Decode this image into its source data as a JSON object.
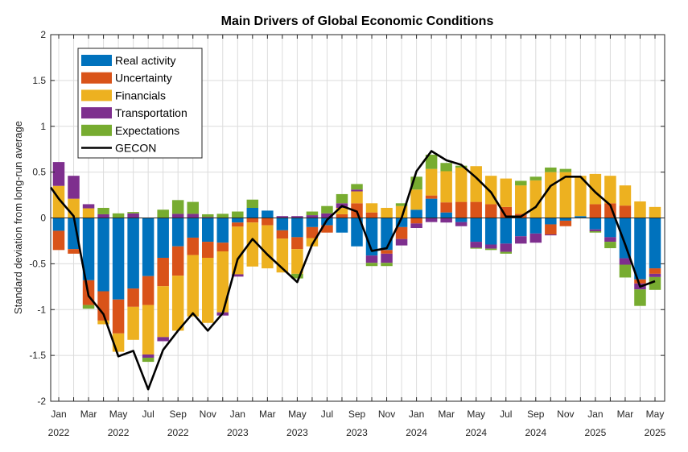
{
  "chart_data": {
    "type": "bar",
    "stacked": true,
    "title": "Main Drivers of Global Economic Conditions",
    "xlabel": "",
    "ylabel": "Standard deviation from long-run average",
    "ylim": [
      -2,
      2
    ],
    "yticks": [
      "2",
      "1.5",
      "1",
      "0.5",
      "0",
      "-0.5",
      "-1",
      "-1.5",
      "-2"
    ],
    "grid": true,
    "legend_position": "top-left",
    "categories": [
      "Jan 2022",
      "Feb 2022",
      "Mar 2022",
      "Apr 2022",
      "May 2022",
      "Jun 2022",
      "Jul 2022",
      "Aug 2022",
      "Sep 2022",
      "Oct 2022",
      "Nov 2022",
      "Dec 2022",
      "Jan 2023",
      "Feb 2023",
      "Mar 2023",
      "Apr 2023",
      "May 2023",
      "Jun 2023",
      "Jul 2023",
      "Aug 2023",
      "Sep 2023",
      "Oct 2023",
      "Nov 2023",
      "Dec 2023",
      "Jan 2024",
      "Feb 2024",
      "Mar 2024",
      "Apr 2024",
      "May 2024",
      "Jun 2024",
      "Jul 2024",
      "Aug 2024",
      "Sep 2024",
      "Oct 2024",
      "Nov 2024",
      "Dec 2024",
      "Jan 2025",
      "Feb 2025",
      "Mar 2025",
      "Apr 2025",
      "May 2025"
    ],
    "xtick_labels": [
      {
        "month": "Jan",
        "year": "2022"
      },
      {
        "month": "Mar",
        "year": ""
      },
      {
        "month": "May",
        "year": "2022"
      },
      {
        "month": "Jul",
        "year": ""
      },
      {
        "month": "Sep",
        "year": "2022"
      },
      {
        "month": "Nov",
        "year": ""
      },
      {
        "month": "Jan",
        "year": "2023"
      },
      {
        "month": "Mar",
        "year": ""
      },
      {
        "month": "May",
        "year": "2023"
      },
      {
        "month": "Jul",
        "year": ""
      },
      {
        "month": "Sep",
        "year": "2023"
      },
      {
        "month": "Nov",
        "year": ""
      },
      {
        "month": "Jan",
        "year": "2024"
      },
      {
        "month": "Mar",
        "year": ""
      },
      {
        "month": "May",
        "year": "2024"
      },
      {
        "month": "Jul",
        "year": ""
      },
      {
        "month": "Sep",
        "year": "2024"
      },
      {
        "month": "Nov",
        "year": ""
      },
      {
        "month": "Jan",
        "year": "2025"
      },
      {
        "month": "Mar",
        "year": ""
      },
      {
        "month": "May",
        "year": "2025"
      }
    ],
    "series": [
      {
        "name": "Real activity",
        "color": "#0072BD",
        "values": [
          -0.14,
          -0.34,
          -0.68,
          -0.8,
          -0.89,
          -0.77,
          -0.635,
          -0.435,
          -0.31,
          -0.215,
          -0.26,
          -0.27,
          -0.05,
          0.11,
          0.08,
          -0.135,
          -0.21,
          -0.1,
          -0.08,
          -0.16,
          -0.31,
          -0.41,
          -0.35,
          -0.1,
          0.09,
          0.21,
          0.06,
          -0.045,
          -0.26,
          -0.29,
          -0.28,
          -0.2,
          -0.17,
          -0.07,
          -0.03,
          0.02,
          -0.125,
          -0.21,
          -0.44,
          -0.67,
          -0.55
        ]
      },
      {
        "name": "Uncertainty",
        "color": "#D95319",
        "values": [
          -0.21,
          -0.05,
          -0.27,
          -0.32,
          -0.37,
          -0.2,
          -0.315,
          -0.31,
          -0.32,
          -0.19,
          -0.175,
          -0.095,
          -0.045,
          -0.05,
          -0.08,
          -0.09,
          -0.13,
          -0.12,
          -0.08,
          0.04,
          0.16,
          0.06,
          -0.04,
          -0.13,
          -0.06,
          0.035,
          0.11,
          0.175,
          0.175,
          0.15,
          0.12,
          0.045,
          0,
          -0.11,
          -0.06,
          0,
          0.15,
          0.16,
          0.135,
          -0.045,
          -0.06
        ]
      },
      {
        "name": "Financials",
        "color": "#EDB120",
        "values": [
          0.35,
          0.21,
          0.105,
          -0.04,
          -0.2,
          -0.36,
          -0.54,
          -0.555,
          -0.6,
          -0.67,
          -0.71,
          -0.665,
          -0.52,
          -0.48,
          -0.47,
          -0.37,
          -0.27,
          -0.09,
          0,
          0.07,
          0.13,
          0.1,
          0.11,
          0.13,
          0.22,
          0.29,
          0.34,
          0.375,
          0.39,
          0.31,
          0.31,
          0.31,
          0.41,
          0.5,
          0.5,
          0.44,
          0.33,
          0.3,
          0.22,
          0.18,
          0.12
        ]
      },
      {
        "name": "Transportation",
        "color": "#7E2F8E",
        "values": [
          0.26,
          0.25,
          0.045,
          0.04,
          0,
          0.05,
          -0.035,
          -0.045,
          0.045,
          0.045,
          0.01,
          -0.035,
          -0.025,
          0,
          0,
          0.02,
          0.02,
          0.03,
          0.05,
          0.05,
          0.02,
          -0.08,
          -0.1,
          -0.07,
          -0.05,
          -0.045,
          -0.05,
          -0.045,
          -0.065,
          -0.045,
          -0.09,
          -0.08,
          -0.1,
          -0.01,
          0,
          0,
          -0.02,
          -0.05,
          -0.07,
          -0.065,
          -0.035
        ]
      },
      {
        "name": "Expectations",
        "color": "#77AC30",
        "values": [
          0,
          0,
          -0.04,
          0.07,
          0.05,
          0.015,
          -0.045,
          0.09,
          0.15,
          0.13,
          0.03,
          0.045,
          0.07,
          0.09,
          0,
          0,
          -0.05,
          0.04,
          0.08,
          0.1,
          0.06,
          -0.035,
          -0.035,
          0.03,
          0.14,
          0.155,
          0.09,
          0.02,
          -0.01,
          -0.015,
          -0.02,
          0.05,
          0.04,
          0.05,
          0.035,
          0,
          -0.015,
          -0.07,
          -0.14,
          -0.18,
          -0.14
        ]
      }
    ],
    "line": {
      "name": "GECON",
      "color": "#000000",
      "previous_value": 0.44,
      "values": [
        0.21,
        0.02,
        -0.85,
        -1.05,
        -1.51,
        -1.45,
        -1.87,
        -1.44,
        -1.23,
        -1.04,
        -1.23,
        -1.04,
        -0.45,
        -0.23,
        -0.4,
        -0.55,
        -0.7,
        -0.29,
        -0.02,
        0.13,
        0.07,
        -0.36,
        -0.33,
        0.0,
        0.51,
        0.73,
        0.63,
        0.58,
        0.44,
        0.28,
        0.015,
        0.015,
        0.12,
        0.35,
        0.45,
        0.45,
        0.28,
        0.14,
        -0.29,
        -0.75,
        -0.69
      ]
    }
  }
}
